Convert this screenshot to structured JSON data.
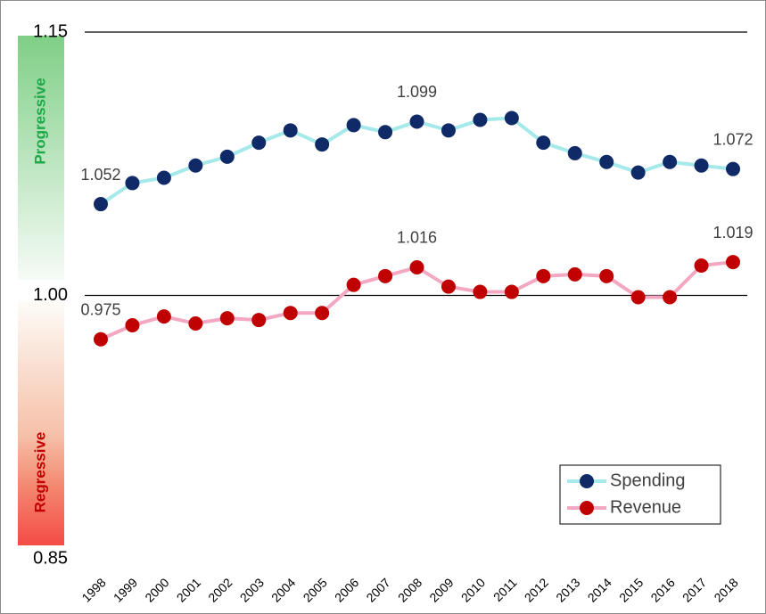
{
  "chart_data": {
    "type": "line",
    "categories": [
      "1998",
      "1999",
      "2000",
      "2001",
      "2002",
      "2003",
      "2004",
      "2005",
      "2006",
      "2007",
      "2008",
      "2009",
      "2010",
      "2011",
      "2012",
      "2013",
      "2014",
      "2015",
      "2016",
      "2017",
      "2018"
    ],
    "series": [
      {
        "name": "Spending",
        "color": "#a6e9ea",
        "marker_color": "#0f2a66",
        "values": [
          1.052,
          1.064,
          1.067,
          1.074,
          1.079,
          1.087,
          1.094,
          1.086,
          1.097,
          1.093,
          1.099,
          1.094,
          1.1,
          1.101,
          1.087,
          1.081,
          1.076,
          1.07,
          1.076,
          1.074,
          1.072
        ]
      },
      {
        "name": "Revenue",
        "color": "#f4a7c3",
        "marker_color": "#c00000",
        "values": [
          0.975,
          0.983,
          0.988,
          0.984,
          0.987,
          0.986,
          0.99,
          0.99,
          1.006,
          1.011,
          1.016,
          1.005,
          1.002,
          1.002,
          1.011,
          1.012,
          1.011,
          0.999,
          0.999,
          1.017,
          1.019
        ]
      }
    ],
    "ylim": [
      0.85,
      1.15
    ],
    "yticks": [
      0.85,
      {
        "value": 1,
        "label": "1.00"
      },
      1.15
    ],
    "grid": true,
    "band_labels": [
      "Progressive",
      "Regressive"
    ],
    "legend": "lower right"
  }
}
